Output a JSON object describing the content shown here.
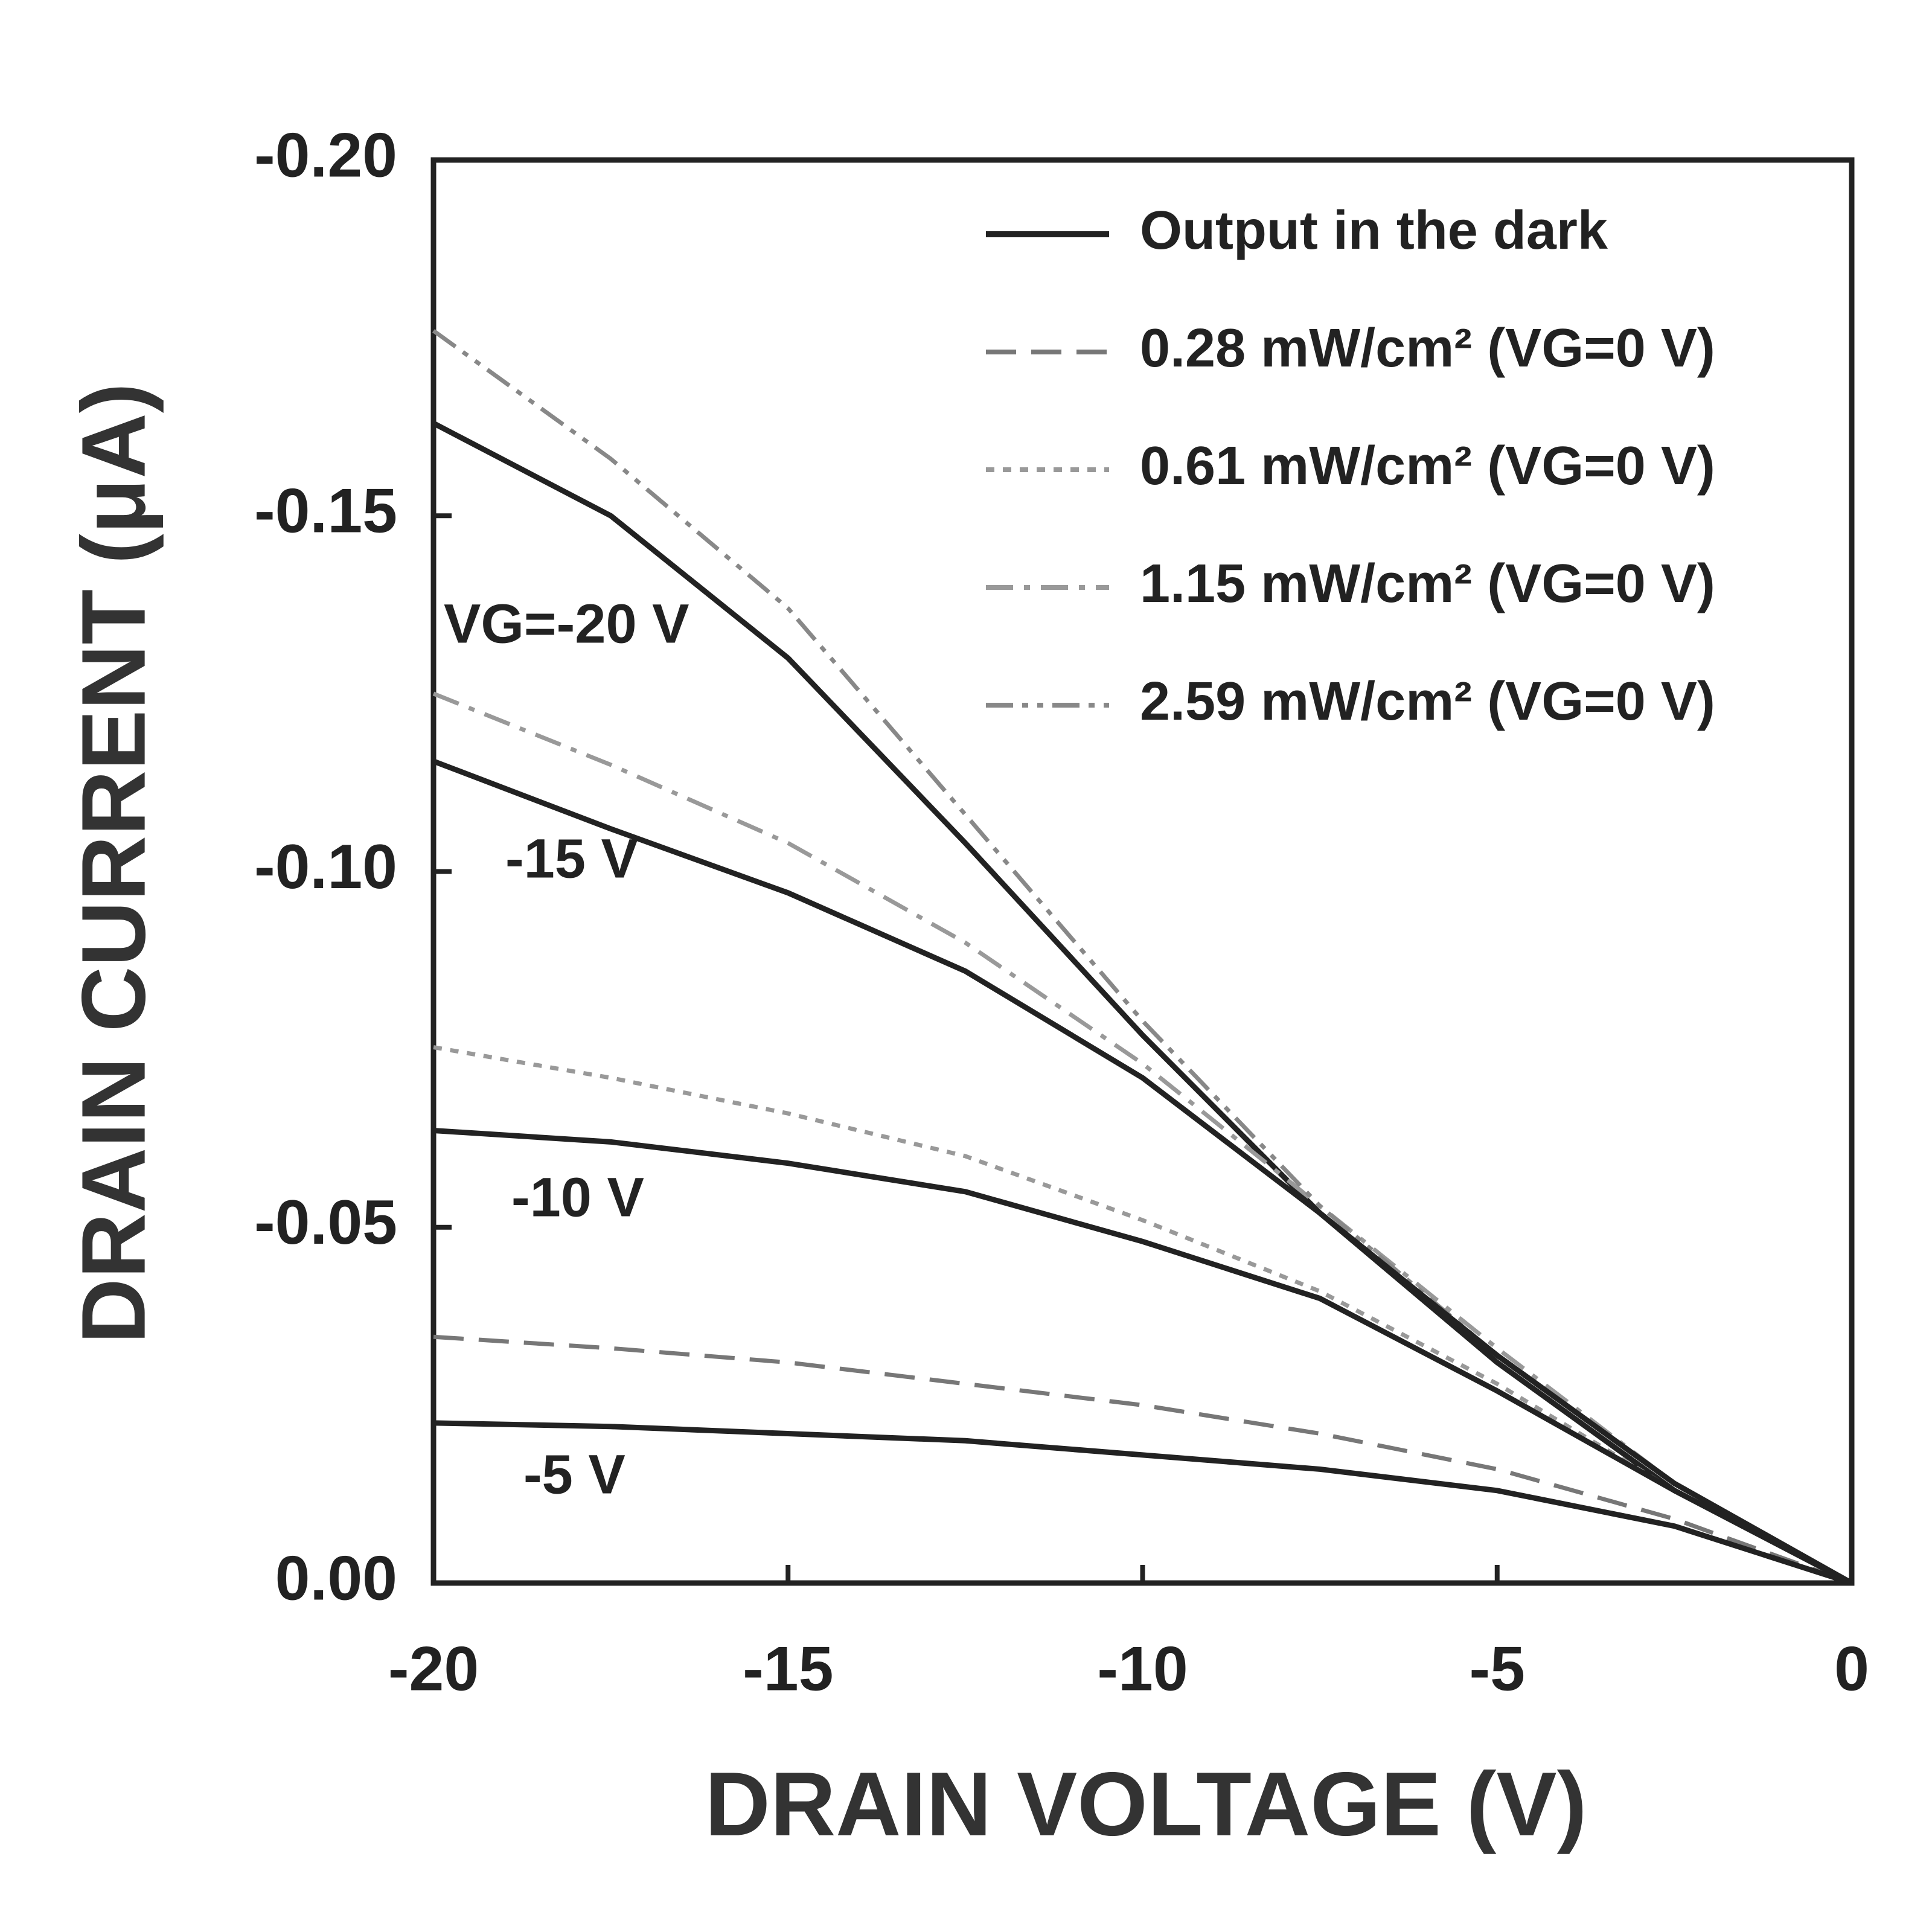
{
  "chart_data": {
    "type": "line",
    "x_label": "DRAIN VOLTAGE (V)",
    "y_label": "DRAIN CURRENT (μA)",
    "xlim": [
      -20,
      0
    ],
    "xticks": [
      -20,
      -15,
      -10,
      -5,
      0
    ],
    "ylim": [
      0,
      -0.2
    ],
    "yticks": [
      {
        "value": 0,
        "label": "0.00"
      },
      {
        "value": -0.05,
        "label": "-0.05"
      },
      {
        "value": -0.1,
        "label": "-0.10"
      },
      {
        "value": -0.15,
        "label": "-0.15"
      },
      {
        "value": -0.2,
        "label": "-0.20"
      }
    ],
    "x": [
      -20,
      -17.5,
      -15,
      -12.5,
      -10,
      -7.5,
      -5,
      -2.5,
      0
    ],
    "series": [
      {
        "name": "Output in the dark",
        "annotation": "VG=-20 V",
        "color": "#222222",
        "dash": "solid",
        "values": [
          -0.163,
          -0.15,
          -0.13,
          -0.104,
          -0.077,
          -0.052,
          -0.031,
          -0.013,
          0
        ]
      },
      {
        "name": "0.28 mW/cm² (VG=0 V)",
        "color": "#777777",
        "dash": "dashed",
        "values": [
          -0.0346,
          -0.033,
          -0.031,
          -0.028,
          -0.025,
          -0.021,
          -0.016,
          -0.009,
          0
        ]
      },
      {
        "name": "0.61 mW/cm² (VG=0 V)",
        "color": "#999999",
        "dash": "dotted",
        "values": [
          -0.0753,
          -0.071,
          -0.066,
          -0.06,
          -0.051,
          -0.041,
          -0.028,
          -0.013,
          0
        ]
      },
      {
        "name": "1.15 mW/cm² (VG=0 V)",
        "color": "#999999",
        "dash": "dashdot",
        "values": [
          -0.125,
          -0.115,
          -0.104,
          -0.09,
          -0.073,
          -0.053,
          -0.033,
          -0.014,
          0
        ]
      },
      {
        "name": "2.59 mW/cm² (VG=0 V)",
        "color": "#888888",
        "dash": "dashdotdot",
        "values": [
          -0.176,
          -0.158,
          -0.137,
          -0.108,
          -0.079,
          -0.053,
          -0.032,
          -0.014,
          0
        ]
      },
      {
        "annotation": "-15 V",
        "color": "#222222",
        "dash": "solid",
        "values": [
          -0.1155,
          -0.106,
          -0.097,
          -0.086,
          -0.071,
          -0.052,
          -0.032,
          -0.014,
          0
        ]
      },
      {
        "annotation": "-10 V",
        "color": "#222222",
        "dash": "solid",
        "values": [
          -0.0636,
          -0.062,
          -0.059,
          -0.055,
          -0.048,
          -0.04,
          -0.027,
          -0.013,
          0
        ]
      },
      {
        "annotation": "-5 V",
        "color": "#222222",
        "dash": "solid",
        "values": [
          -0.0225,
          -0.022,
          -0.021,
          -0.02,
          -0.018,
          -0.016,
          -0.013,
          -0.008,
          0
        ]
      }
    ]
  }
}
